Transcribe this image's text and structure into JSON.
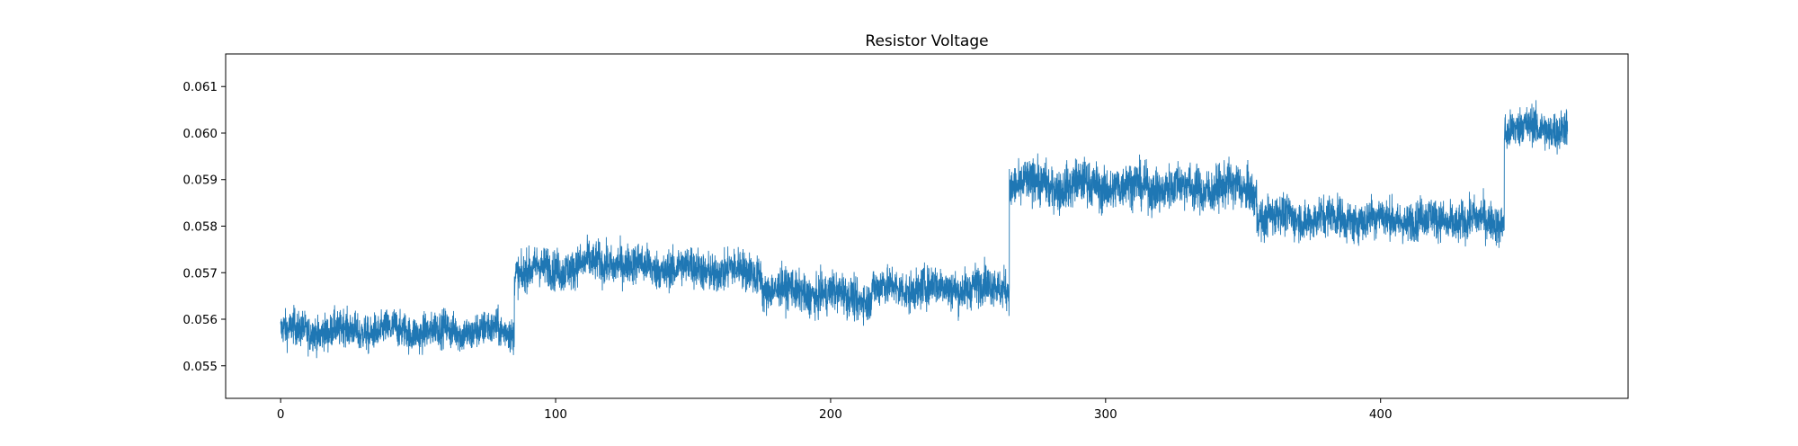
{
  "chart_data": {
    "type": "line",
    "title": "Resistor Voltage",
    "xlabel": "",
    "ylabel": "",
    "xlim": [
      -20,
      490
    ],
    "ylim": [
      0.0543,
      0.0617
    ],
    "xticks": [
      0,
      100,
      200,
      300,
      400
    ],
    "yticks": [
      0.055,
      0.056,
      0.057,
      0.058,
      0.059,
      0.06,
      0.061
    ],
    "xtick_labels": [
      "0",
      "100",
      "200",
      "300",
      "400"
    ],
    "ytick_labels": [
      "0.055",
      "0.056",
      "0.057",
      "0.058",
      "0.059",
      "0.060",
      "0.061"
    ],
    "grid": false,
    "legend": "none",
    "series": [
      {
        "color": "#1f77b4",
        "segments": [
          {
            "x_start": 0,
            "x_end": 85,
            "mean_start": 0.05575,
            "mean_end": 0.05575,
            "spread": 0.00045
          },
          {
            "x_start": 85,
            "x_end": 125,
            "mean_start": 0.057,
            "mean_end": 0.05725,
            "spread": 0.0005
          },
          {
            "x_start": 125,
            "x_end": 175,
            "mean_start": 0.05715,
            "mean_end": 0.057,
            "spread": 0.0005
          },
          {
            "x_start": 175,
            "x_end": 215,
            "mean_start": 0.05665,
            "mean_end": 0.05645,
            "spread": 0.0005
          },
          {
            "x_start": 215,
            "x_end": 265,
            "mean_start": 0.05665,
            "mean_end": 0.0567,
            "spread": 0.0005
          },
          {
            "x_start": 265,
            "x_end": 355,
            "mean_start": 0.0589,
            "mean_end": 0.0588,
            "spread": 0.00055
          },
          {
            "x_start": 355,
            "x_end": 445,
            "mean_start": 0.0582,
            "mean_end": 0.0581,
            "spread": 0.0005
          },
          {
            "x_start": 445,
            "x_end": 468,
            "mean_start": 0.0601,
            "mean_end": 0.0601,
            "spread": 0.0005
          }
        ]
      }
    ]
  }
}
